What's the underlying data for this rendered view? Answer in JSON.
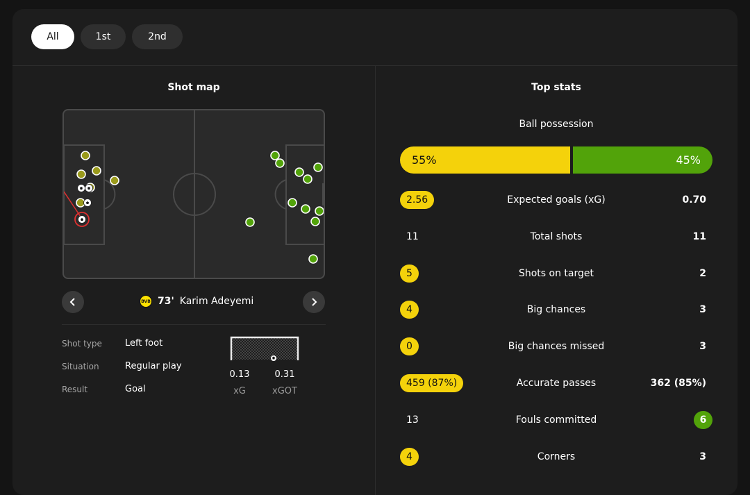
{
  "tabs": [
    "All",
    "1st",
    "2nd"
  ],
  "colors": {
    "home": "#f4d20b",
    "away": "#52a30a",
    "goal_marker": "#e03030"
  },
  "shot_map": {
    "title": "Shot map",
    "selected_shot": {
      "minute": "73'",
      "player": "Karim Adeyemi",
      "team_badge_text": "BVB",
      "details": [
        {
          "label": "Shot type",
          "value": "Left foot"
        },
        {
          "label": "Situation",
          "value": "Regular play"
        },
        {
          "label": "Result",
          "value": "Goal"
        }
      ],
      "xg": "0.13",
      "xg_label": "xG",
      "xgot": "0.31",
      "xgot_label": "xGOT"
    }
  },
  "top_stats": {
    "title": "Top stats",
    "possession": {
      "label": "Ball possession",
      "home": "55%",
      "away": "45%",
      "home_share": 0.55
    },
    "rows": [
      {
        "label": "Expected goals (xG)",
        "home": "2.56",
        "away": "0.70",
        "highlight": "home"
      },
      {
        "label": "Total shots",
        "home": "11",
        "away": "11",
        "highlight": "none"
      },
      {
        "label": "Shots on target",
        "home": "5",
        "away": "2",
        "highlight": "home"
      },
      {
        "label": "Big chances",
        "home": "4",
        "away": "3",
        "highlight": "home"
      },
      {
        "label": "Big chances missed",
        "home": "0",
        "away": "3",
        "highlight": "home"
      },
      {
        "label": "Accurate passes",
        "home": "459 (87%)",
        "away": "362 (85%)",
        "highlight": "home"
      },
      {
        "label": "Fouls committed",
        "home": "13",
        "away": "6",
        "highlight": "away"
      },
      {
        "label": "Corners",
        "home": "4",
        "away": "3",
        "highlight": "home"
      }
    ]
  }
}
